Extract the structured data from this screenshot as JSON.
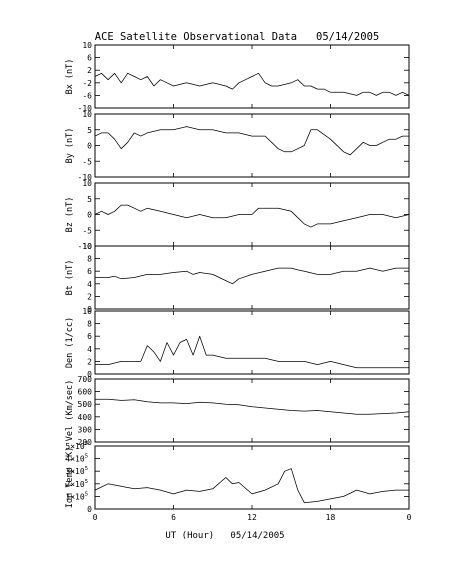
{
  "chart_data": {
    "type": "line",
    "title": "ACE Satellite Observational Data   05/14/2005",
    "xlabel": "UT (Hour)   05/14/2005",
    "x_ticks": [
      "0",
      "6",
      "12",
      "18",
      "0"
    ],
    "xlim": [
      0,
      24
    ],
    "panels": [
      {
        "name": "bx",
        "ylabel": "Bx (nT)",
        "ylim": [
          -10,
          10
        ],
        "yticks": [
          -10,
          -6,
          -2,
          2,
          6,
          10
        ],
        "ytick_labels": [
          "-10",
          "-6",
          "-2",
          "2",
          "6",
          "10"
        ],
        "x": [
          0,
          0.5,
          1,
          1.5,
          2,
          2.5,
          3,
          3.5,
          4,
          4.5,
          5,
          5.5,
          6,
          7,
          8,
          9,
          10,
          10.5,
          11,
          11.5,
          12,
          12.5,
          13,
          13.5,
          14,
          15,
          15.5,
          16,
          16.5,
          17,
          17.5,
          18,
          19,
          20,
          20.5,
          21,
          21.5,
          22,
          22.5,
          23,
          23.5,
          24
        ],
        "y": [
          0,
          1,
          -1,
          1,
          -2,
          1,
          0,
          -1,
          0,
          -3,
          -1,
          -2,
          -3,
          -2,
          -3,
          -2,
          -3,
          -4,
          -2,
          -1,
          0,
          1,
          -2,
          -3,
          -3,
          -2,
          -1,
          -3,
          -3,
          -4,
          -4,
          -5,
          -5,
          -6,
          -5,
          -5,
          -6,
          -5,
          -5,
          -6,
          -5,
          -6
        ]
      },
      {
        "name": "by",
        "ylabel": "By (nT)",
        "ylim": [
          -10,
          10
        ],
        "yticks": [
          -10,
          -5,
          0,
          5,
          10
        ],
        "ytick_labels": [
          "-10",
          "-5",
          "0",
          "5",
          "10"
        ],
        "x": [
          0,
          0.5,
          1,
          1.5,
          2,
          2.5,
          3,
          3.5,
          4,
          5,
          6,
          7,
          8,
          9,
          10,
          11,
          12,
          13,
          13.5,
          14,
          14.5,
          15,
          15.5,
          16,
          16.5,
          17,
          18,
          19,
          19.5,
          20,
          20.5,
          21,
          21.5,
          22,
          22.5,
          23,
          23.5,
          24
        ],
        "y": [
          3,
          4,
          4,
          2,
          -1,
          1,
          4,
          3,
          4,
          5,
          5,
          6,
          5,
          5,
          4,
          4,
          3,
          3,
          1,
          -1,
          -2,
          -2,
          -1,
          0,
          5,
          5,
          2,
          -2,
          -3,
          -1,
          1,
          0,
          0,
          1,
          2,
          2,
          3,
          3
        ]
      },
      {
        "name": "bz",
        "ylabel": "Bz (nT)",
        "ylim": [
          -10,
          10
        ],
        "yticks": [
          -10,
          -5,
          0,
          5,
          10
        ],
        "ytick_labels": [
          "-10",
          "-5",
          "0",
          "5",
          "10"
        ],
        "x": [
          0,
          0.5,
          1,
          1.5,
          2,
          2.5,
          3,
          3.5,
          4,
          5,
          6,
          7,
          8,
          9,
          10,
          11,
          12,
          12.5,
          13,
          14,
          15,
          15.5,
          16,
          16.5,
          17,
          18,
          19,
          20,
          21,
          22,
          23,
          24
        ],
        "y": [
          0,
          1,
          0,
          1,
          3,
          3,
          2,
          1,
          2,
          1,
          0,
          -1,
          0,
          -1,
          -1,
          0,
          0,
          2,
          2,
          2,
          1,
          -1,
          -3,
          -4,
          -3,
          -3,
          -2,
          -1,
          0,
          0,
          -1,
          0
        ]
      },
      {
        "name": "bt",
        "ylabel": "Bt (nT)",
        "ylim": [
          0,
          10
        ],
        "yticks": [
          0,
          2,
          4,
          6,
          8,
          10
        ],
        "ytick_labels": [
          "0",
          "2",
          "4",
          "6",
          "8",
          "10"
        ],
        "x": [
          0,
          0.5,
          1,
          1.5,
          2,
          3,
          4,
          5,
          6,
          7,
          7.5,
          8,
          9,
          10,
          10.5,
          11,
          12,
          13,
          14,
          15,
          15.5,
          16,
          17,
          18,
          19,
          20,
          21,
          22,
          23,
          24
        ],
        "y": [
          5,
          5,
          5,
          5.2,
          4.8,
          5,
          5.5,
          5.5,
          5.8,
          6,
          5.5,
          5.8,
          5.5,
          4.5,
          4,
          4.8,
          5.5,
          6,
          6.5,
          6.5,
          6.2,
          6,
          5.5,
          5.5,
          6,
          6,
          6.5,
          6,
          6.5,
          6.5
        ]
      },
      {
        "name": "den",
        "ylabel": "Den (1/cc)",
        "ylim": [
          0,
          10
        ],
        "yticks": [
          0,
          2,
          4,
          6,
          8,
          10
        ],
        "ytick_labels": [
          "0",
          "2",
          "4",
          "6",
          "8",
          "10"
        ],
        "x": [
          0,
          1,
          2,
          3,
          3.5,
          4,
          4.5,
          5,
          5.5,
          6,
          6.5,
          7,
          7.5,
          8,
          8.5,
          9,
          10,
          11,
          12,
          13,
          14,
          15,
          16,
          17,
          18,
          19,
          20,
          21,
          22,
          23,
          24
        ],
        "y": [
          1.5,
          1.5,
          2,
          2,
          2,
          4.5,
          3.5,
          2,
          5,
          3,
          5,
          5.5,
          3,
          6,
          3,
          3,
          2.5,
          2.5,
          2.5,
          2.5,
          2,
          2,
          2,
          1.5,
          2,
          1.5,
          1,
          1,
          1,
          1,
          1
        ]
      },
      {
        "name": "vel",
        "ylabel": "Vel (Km/sec)",
        "ylim": [
          200,
          700
        ],
        "yticks": [
          200,
          300,
          400,
          500,
          600,
          700
        ],
        "ytick_labels": [
          "200",
          "300",
          "400",
          "500",
          "600",
          "700"
        ],
        "x": [
          0,
          1,
          2,
          3,
          4,
          5,
          6,
          7,
          8,
          9,
          10,
          11,
          12,
          13,
          14,
          15,
          16,
          17,
          18,
          19,
          20,
          21,
          22,
          23,
          24
        ],
        "y": [
          540,
          540,
          530,
          535,
          520,
          510,
          510,
          505,
          515,
          510,
          500,
          495,
          480,
          470,
          460,
          450,
          445,
          450,
          440,
          430,
          420,
          420,
          425,
          430,
          440
        ]
      },
      {
        "name": "temp",
        "ylabel": "Ion Temp (K)",
        "ylim": [
          0,
          500000
        ],
        "yticks": [
          0,
          100000,
          200000,
          300000,
          400000,
          500000
        ],
        "ytick_labels": [
          "0",
          "1×10",
          "2×10",
          "3×10",
          "4×10",
          "5×10"
        ],
        "ytick_exponent": "5",
        "x": [
          0,
          1,
          2,
          3,
          4,
          5,
          6,
          7,
          8,
          9,
          10,
          10.5,
          11,
          12,
          13,
          14,
          14.5,
          15,
          15.5,
          16,
          17,
          18,
          19,
          20,
          21,
          22,
          23,
          24
        ],
        "y": [
          150000,
          200000,
          180000,
          160000,
          170000,
          150000,
          120000,
          150000,
          140000,
          160000,
          250000,
          200000,
          210000,
          120000,
          150000,
          200000,
          300000,
          320000,
          150000,
          50000,
          60000,
          80000,
          100000,
          150000,
          120000,
          140000,
          150000,
          150000
        ]
      }
    ]
  }
}
